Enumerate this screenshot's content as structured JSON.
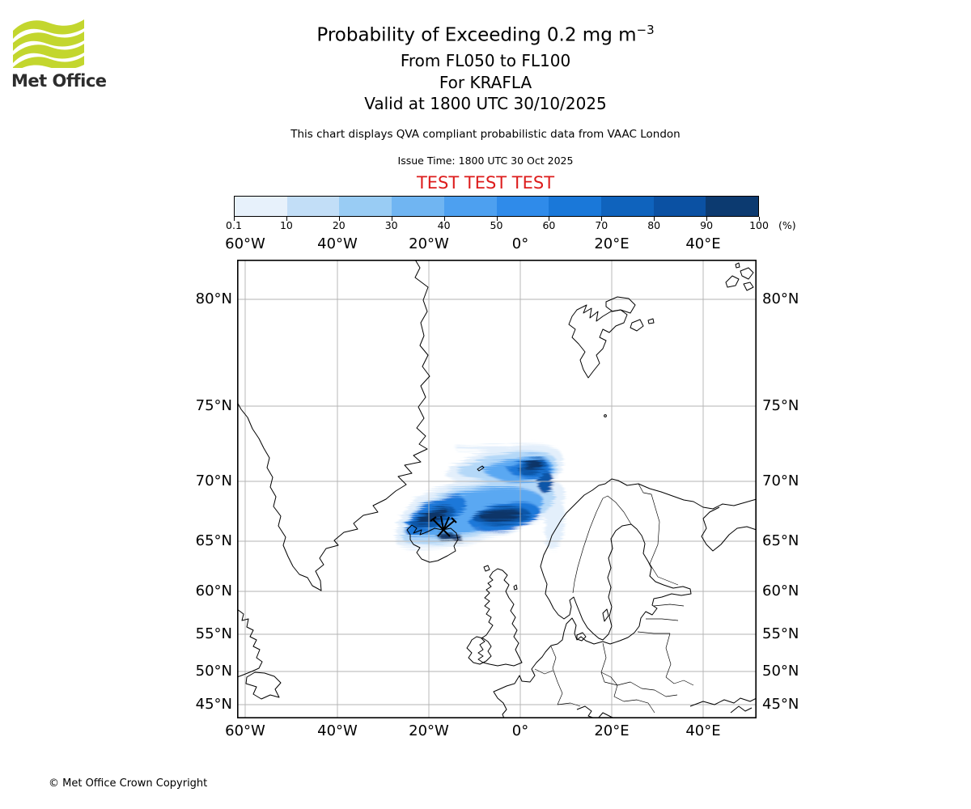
{
  "logo": {
    "brand": "Met Office",
    "wave_color": "#c3d62e",
    "text_color": "#2d2d2d"
  },
  "header": {
    "title": "Probability of Exceeding 0.2 mg m",
    "title_exponent": "−3",
    "subtitle_lines": [
      "From FL050 to FL100",
      "For KRAFLA",
      "Valid at 1800 UTC 30/10/2025"
    ],
    "description": "This chart displays QVA compliant probabilistic data from VAAC London",
    "issue_time": "Issue Time: 1800 UTC 30 Oct 2025",
    "test_banner": "TEST TEST TEST",
    "test_color": "#dd1c1c"
  },
  "colorbar": {
    "unit": "(%)",
    "tick_labels": [
      "0.1",
      "10",
      "20",
      "30",
      "40",
      "50",
      "60",
      "70",
      "80",
      "90",
      "100"
    ],
    "segment_colors": [
      "#e7f1fb",
      "#c2def7",
      "#99ccf4",
      "#70b5f2",
      "#4da0f0",
      "#2f8bea",
      "#1a78d9",
      "#0f63bd",
      "#0b51a3",
      "#0c3a70"
    ]
  },
  "map": {
    "axis": {
      "top": [
        "60°W",
        "40°W",
        "20°W",
        "0°",
        "20°E",
        "40°E"
      ],
      "bottom": [
        "60°W",
        "40°W",
        "20°W",
        "0°",
        "20°E",
        "40°E"
      ],
      "left": [
        "80°N",
        "75°N",
        "70°N",
        "65°N",
        "60°N",
        "55°N",
        "50°N",
        "45°N"
      ],
      "right": [
        "80°N",
        "75°N",
        "70°N",
        "65°N",
        "60°N",
        "55°N",
        "50°N",
        "45°N"
      ]
    },
    "grid_color": "#b3b3b3",
    "coastline_color": "#000000",
    "plume_colors": {
      "lightest": "#e3effb",
      "light": "#b4d8f8",
      "mid": "#5aa8f2",
      "strong": "#1a78d9",
      "dark": "#0d56a8",
      "darkest": "#0a3568"
    }
  },
  "footer": {
    "copyright": "© Met Office Crown Copyright"
  }
}
